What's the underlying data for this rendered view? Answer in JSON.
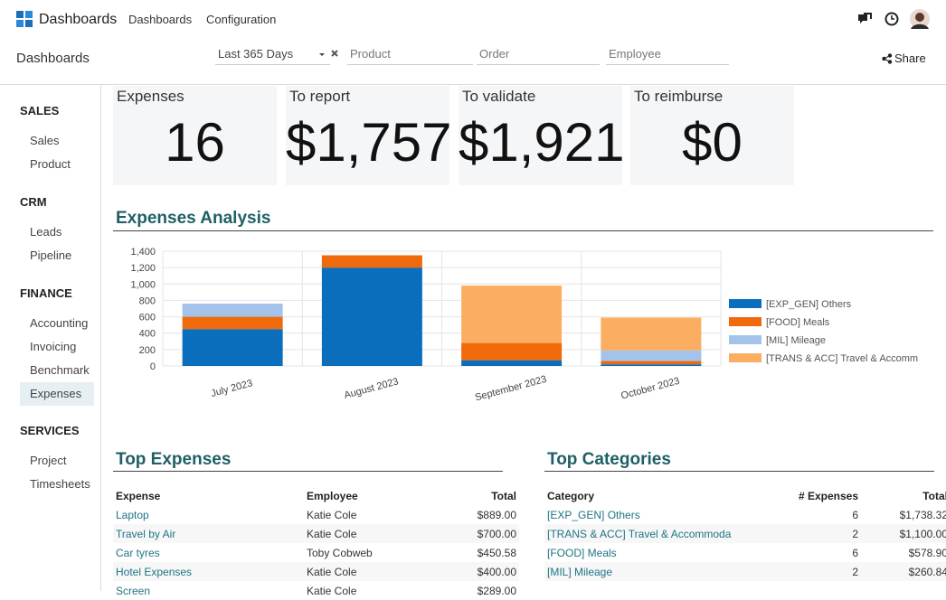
{
  "navbar": {
    "app": "Dashboards",
    "menu": [
      "Dashboards",
      "Configuration"
    ]
  },
  "control_panel": {
    "title": "Dashboards",
    "date_filter": "Last 365 Days",
    "fields": [
      "Product",
      "Order",
      "Employee"
    ],
    "share": "Share"
  },
  "sidebar": {
    "sections": [
      {
        "title": "SALES",
        "items": [
          "Sales",
          "Product"
        ]
      },
      {
        "title": "CRM",
        "items": [
          "Leads",
          "Pipeline"
        ]
      },
      {
        "title": "FINANCE",
        "items": [
          "Accounting",
          "Invoicing",
          "Benchmark",
          "Expenses"
        ]
      },
      {
        "title": "SERVICES",
        "items": [
          "Project",
          "Timesheets"
        ]
      }
    ],
    "selected": {
      "section": 2,
      "item": 3
    }
  },
  "kpis": [
    {
      "label": "Expenses",
      "value": "16"
    },
    {
      "label": "To report",
      "value": "$1,757"
    },
    {
      "label": "To validate",
      "value": "$1,921"
    },
    {
      "label": "To reimburse",
      "value": "$0"
    }
  ],
  "analysis_title": "Expenses Analysis",
  "chart_data": {
    "type": "stacked_bar",
    "categories": [
      "July 2023",
      "August 2023",
      "September 2023",
      "October 2023"
    ],
    "series": [
      {
        "name": "[EXP_GEN] Others",
        "color": "#0a6ebd",
        "values": [
          450,
          1200,
          70,
          20
        ]
      },
      {
        "name": "[FOOD] Meals",
        "color": "#f06a0c",
        "values": [
          150,
          150,
          210,
          40
        ]
      },
      {
        "name": "[MIL] Mileage",
        "color": "#a4c3ea",
        "values": [
          160,
          0,
          0,
          130
        ]
      },
      {
        "name": "[TRANS & ACC] Travel & Accomm",
        "color": "#fbae62",
        "values": [
          0,
          0,
          700,
          400
        ]
      }
    ],
    "ylim": [
      0,
      1400
    ],
    "yticks": [
      0,
      200,
      400,
      600,
      800,
      {
        "value": 1000,
        "label": "1,000"
      },
      {
        "value": 1200,
        "label": "1,200"
      },
      {
        "value": 1400,
        "label": "1,400"
      }
    ],
    "grid": true,
    "legend": "right"
  },
  "top_expenses": {
    "title": "Top Expenses",
    "columns": [
      "Expense",
      "Employee",
      "Total"
    ],
    "align": [
      "left",
      "left",
      "right"
    ],
    "rows": [
      [
        "Laptop",
        "Katie Cole",
        "$889.00"
      ],
      [
        "Travel by Air",
        "Katie Cole",
        "$700.00"
      ],
      [
        "Car tyres",
        "Toby Cobweb",
        "$450.58"
      ],
      [
        "Hotel Expenses",
        "Katie Cole",
        "$400.00"
      ],
      [
        "Screen",
        "Katie Cole",
        "$289.00"
      ]
    ]
  },
  "top_categories": {
    "title": "Top Categories",
    "columns": [
      "Category",
      "# Expenses",
      "Total"
    ],
    "align": [
      "left",
      "right",
      "right"
    ],
    "rows": [
      [
        "[EXP_GEN] Others",
        "6",
        "$1,738.32"
      ],
      [
        "[TRANS & ACC] Travel & Accommoda",
        "2",
        "$1,100.00"
      ],
      [
        "[FOOD] Meals",
        "6",
        "$578.90"
      ],
      [
        "[MIL] Mileage",
        "2",
        "$260.84"
      ]
    ]
  }
}
